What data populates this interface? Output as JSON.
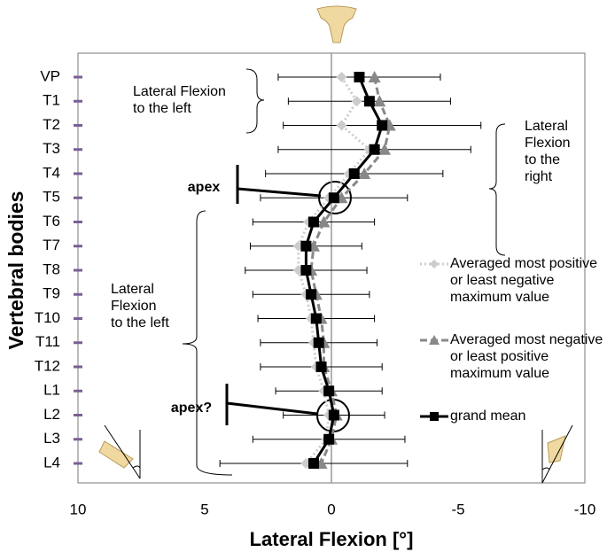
{
  "chart_data": {
    "type": "line",
    "orientation": "horizontal",
    "x_label": "Lateral Flexion [°]",
    "y_label": "Vertebral bodies",
    "categories": [
      "VP",
      "T1",
      "T2",
      "T3",
      "T4",
      "T5",
      "T6",
      "T7",
      "T8",
      "T9",
      "T10",
      "T11",
      "T12",
      "L1",
      "L2",
      "L3",
      "L4"
    ],
    "xlim": [
      10,
      -10
    ],
    "xticks": [
      10,
      5,
      0,
      -5,
      -10
    ],
    "series": [
      {
        "name": "Averaged most positive or least negative maximum value",
        "color": "#cccccc",
        "dash": "dotted",
        "marker": "diamond",
        "values": [
          -0.4,
          -1.0,
          -0.4,
          -1.5,
          -0.7,
          0.1,
          0.9,
          1.3,
          1.3,
          1.0,
          0.8,
          0.7,
          0.6,
          0.3,
          0.1,
          0.2,
          1.0
        ]
      },
      {
        "name": "Averaged most negative or least positive maximum value",
        "color": "#888888",
        "dash": "dashed",
        "marker": "triangle",
        "values": [
          -1.7,
          -1.9,
          -2.3,
          -2.1,
          -1.3,
          -0.4,
          0.3,
          0.7,
          0.8,
          0.6,
          0.4,
          0.3,
          0.3,
          0.0,
          -0.2,
          0.0,
          0.4
        ]
      },
      {
        "name": "grand mean",
        "color": "#000000",
        "dash": "solid",
        "marker": "square",
        "values": [
          -1.1,
          -1.5,
          -2.0,
          -1.7,
          -0.9,
          -0.1,
          0.7,
          1.0,
          1.0,
          0.8,
          0.6,
          0.5,
          0.4,
          0.1,
          -0.1,
          0.1,
          0.7
        ],
        "errors": [
          3.2,
          3.2,
          3.9,
          3.8,
          3.5,
          2.9,
          2.4,
          2.2,
          2.4,
          2.3,
          2.3,
          2.3,
          2.4,
          2.1,
          2.0,
          3.0,
          3.7
        ]
      }
    ],
    "annotations": [
      {
        "text": "Lateral Flexion to the left"
      },
      {
        "text": "Lateral Flexion to the right"
      },
      {
        "text": "Lateral Flexion to the left"
      },
      {
        "text": "apex"
      },
      {
        "text": "apex?"
      }
    ]
  }
}
